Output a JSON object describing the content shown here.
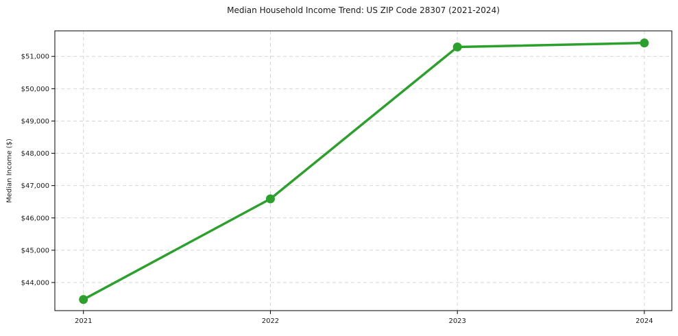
{
  "chart_data": {
    "type": "line",
    "title": "Median Household Income Trend: US ZIP Code 28307 (2021-2024)",
    "xlabel": "",
    "ylabel": "Median Income ($)",
    "categories": [
      2021,
      2022,
      2023,
      2024
    ],
    "x_tick_labels": [
      "2021",
      "2022",
      "2023",
      "2024"
    ],
    "series": [
      {
        "name": "Median Household Income",
        "values": [
          43475,
          46590,
          51290,
          51415
        ]
      }
    ],
    "yticks": [
      44000,
      45000,
      46000,
      47000,
      48000,
      49000,
      50000,
      51000
    ],
    "y_tick_labels": [
      "$44,000",
      "$45,000",
      "$46,000",
      "$47,000",
      "$48,000",
      "$49,000",
      "$50,000",
      "$51,000"
    ],
    "xlim": [
      2020.847,
      2024.147
    ],
    "ylim": [
      43130,
      51790
    ],
    "grid": true,
    "grid_style": "dashed",
    "legend": false,
    "marker": "circle",
    "colors": {
      "line": "#2ca02c",
      "marker": "#2ca02c",
      "grid": "#d4d4d4",
      "axis": "#000000",
      "text": "#1a1a1a",
      "background": "#ffffff"
    }
  }
}
